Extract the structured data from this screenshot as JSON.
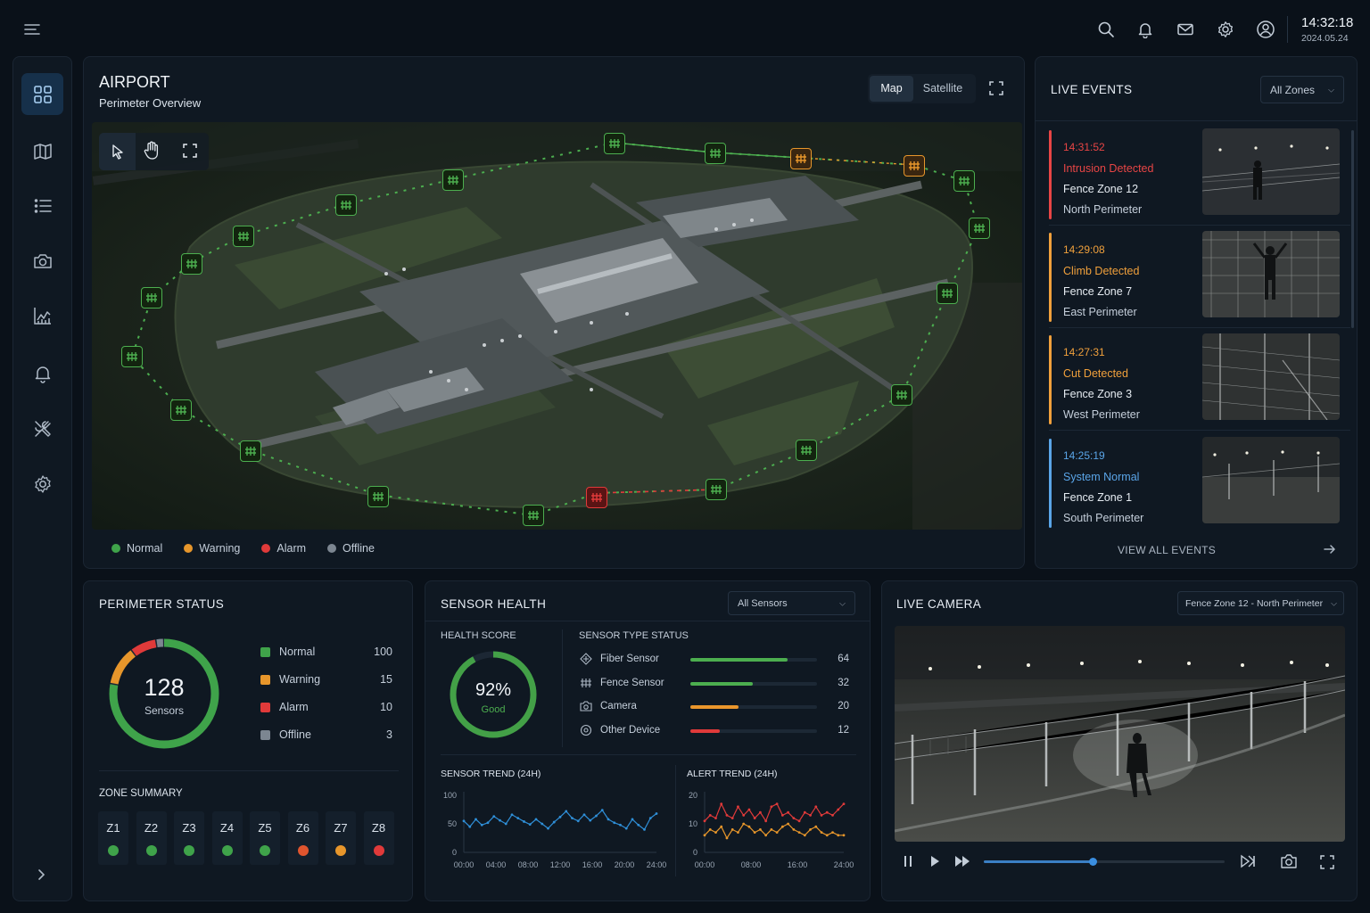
{
  "header": {
    "time": "14:32:18",
    "date": "2024.05.24",
    "icons": [
      "search-icon",
      "bell-icon",
      "mail-icon",
      "gear-icon",
      "user-icon"
    ]
  },
  "sidebar": {
    "items": [
      "dashboard-icon",
      "map-icon",
      "list-icon",
      "camera-icon",
      "chart-icon",
      "bell-icon",
      "tools-icon",
      "gear-icon"
    ],
    "active": "dashboard-icon"
  },
  "map_panel": {
    "title": "AIRPORT",
    "subtitle": "Perimeter Overview",
    "view_tabs": [
      "Map",
      "Satellite"
    ],
    "active_tab": "Map",
    "legend": [
      {
        "label": "Normal",
        "color": "#3fa34a"
      },
      {
        "label": "Warning",
        "color": "#e7962b"
      },
      {
        "label": "Alarm",
        "color": "#e03a3a"
      },
      {
        "label": "Offline",
        "color": "#7c8691"
      }
    ]
  },
  "live_events": {
    "title": "LIVE EVENTS",
    "filter": "All Zones",
    "view_all": "VIEW ALL EVENTS",
    "events": [
      {
        "time": "14:31:52",
        "type": "Intrusion Detected",
        "zone": "Fence Zone 12",
        "area": "North Perimeter",
        "color": "#e84545"
      },
      {
        "time": "14:29:08",
        "type": "Climb Detected",
        "zone": "Fence Zone 7",
        "area": "East Perimeter",
        "color": "#f0a03c"
      },
      {
        "time": "14:27:31",
        "type": "Cut Detected",
        "zone": "Fence Zone 3",
        "area": "West Perimeter",
        "color": "#f0a03c"
      },
      {
        "time": "14:25:19",
        "type": "System Normal",
        "zone": "Fence Zone 1",
        "area": "South Perimeter",
        "color": "#5aa5e8"
      }
    ]
  },
  "perimeter_status": {
    "title": "PERIMETER STATUS",
    "total": "128",
    "total_label": "Sensors",
    "rows": [
      {
        "label": "Normal",
        "value": "100",
        "color": "#3fa34a"
      },
      {
        "label": "Warning",
        "value": "15",
        "color": "#e7962b"
      },
      {
        "label": "Alarm",
        "value": "10",
        "color": "#e03a3a"
      },
      {
        "label": "Offline",
        "value": "3",
        "color": "#7c8691"
      }
    ],
    "zone_title": "ZONE SUMMARY",
    "zones": [
      {
        "label": "Z1",
        "color": "#3fa34a"
      },
      {
        "label": "Z2",
        "color": "#3fa34a"
      },
      {
        "label": "Z3",
        "color": "#3fa34a"
      },
      {
        "label": "Z4",
        "color": "#3fa34a"
      },
      {
        "label": "Z5",
        "color": "#3fa34a"
      },
      {
        "label": "Z6",
        "color": "#e0552e"
      },
      {
        "label": "Z7",
        "color": "#e7962b"
      },
      {
        "label": "Z8",
        "color": "#e03a3a"
      }
    ]
  },
  "sensor_health": {
    "title": "SENSOR HEALTH",
    "filter": "All Sensors",
    "score_title": "HEALTH SCORE",
    "score": "92%",
    "score_value": 0.92,
    "score_label": "Good",
    "types_title": "SENSOR TYPE STATUS",
    "types": [
      {
        "label": "Fiber Sensor",
        "value": "64",
        "fraction": 0.77,
        "color": "#4cae4f",
        "icon": "fiber-icon"
      },
      {
        "label": "Fence Sensor",
        "value": "32",
        "fraction": 0.49,
        "color": "#4cae4f",
        "icon": "fence-icon"
      },
      {
        "label": "Camera",
        "value": "20",
        "fraction": 0.38,
        "color": "#ea962c",
        "icon": "camera-icon"
      },
      {
        "label": "Other Device",
        "value": "12",
        "fraction": 0.23,
        "color": "#e03a3a",
        "icon": "device-icon"
      }
    ]
  },
  "chart_data": [
    {
      "type": "line",
      "title": "SENSOR TREND (24H)",
      "xlabels": [
        "00:00",
        "04:00",
        "08:00",
        "12:00",
        "16:00",
        "20:00",
        "24:00"
      ],
      "ylim": [
        0,
        100
      ],
      "yticks": [
        "100",
        "50",
        "0"
      ],
      "series": [
        {
          "color": "#2f8fd8",
          "values": [
            55,
            45,
            58,
            48,
            52,
            63,
            56,
            50,
            66,
            60,
            54,
            49,
            58,
            50,
            42,
            53,
            62,
            72,
            60,
            55,
            66,
            56,
            64,
            74,
            58,
            52,
            48,
            42,
            58,
            48,
            40,
            60,
            68
          ]
        }
      ]
    },
    {
      "type": "line",
      "title": "ALERT TREND (24H)",
      "xlabels": [
        "00:00",
        "08:00",
        "16:00",
        "24:00"
      ],
      "ylim": [
        0,
        20
      ],
      "yticks": [
        "20",
        "10",
        "0"
      ],
      "series": [
        {
          "color": "#e03a3a",
          "values": [
            11,
            13,
            12,
            17,
            13,
            12,
            16,
            13,
            15,
            12,
            14,
            11,
            16,
            17,
            13,
            14,
            12,
            11,
            14,
            13,
            16,
            13,
            14,
            13,
            15,
            17
          ]
        },
        {
          "color": "#e7962b",
          "values": [
            6,
            8,
            7,
            9,
            5,
            8,
            7,
            10,
            9,
            7,
            8,
            6,
            8,
            7,
            9,
            10,
            8,
            7,
            6,
            8,
            9,
            7,
            6,
            7,
            6,
            6
          ]
        }
      ]
    }
  ],
  "live_camera": {
    "title": "LIVE CAMERA",
    "source": "Fence Zone 12 - North Perimeter",
    "progress": 0.45
  }
}
